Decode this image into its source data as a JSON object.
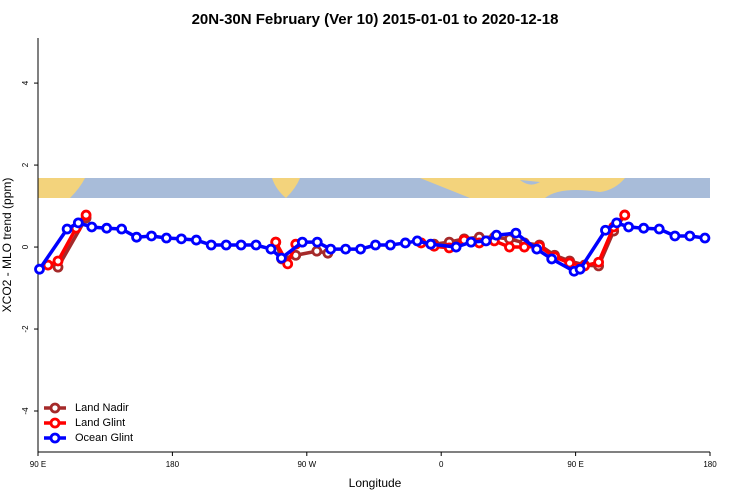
{
  "chart_data": {
    "type": "line",
    "title": "20N-30N February (Ver 10)   2015-01-01 to 2020-12-18",
    "x_label": "Longitude",
    "y_label": "XCO2 - MLO trend (ppm)",
    "xlim": [
      90,
      540
    ],
    "xticks": [
      {
        "value": 90,
        "label": "90 E"
      },
      180,
      {
        "value": 270,
        "label": "90 W"
      },
      {
        "value": 360,
        "label": "0"
      },
      {
        "value": 450,
        "label": "90 E"
      },
      {
        "value": 540,
        "label": "180"
      }
    ],
    "ylim": [
      -5,
      5.1
    ],
    "yticks": [
      -4,
      -2,
      0,
      2,
      4
    ],
    "legend": "bottom-left",
    "series": [
      {
        "name": "Land Nadir",
        "color": "#a52a2a",
        "x": [
          103.4,
          122.2,
          180,
          249.2,
          253.2,
          262.6,
          276.7,
          284.1,
          320,
          355.3,
          365.4,
          375.4,
          385.5,
          395.6,
          405.7,
          415.7,
          425.8,
          435.9,
          446,
          456,
          465.4,
          475.5,
          482.9
        ],
        "values": [
          -0.49,
          0.71,
          null,
          0.12,
          -0.29,
          -0.2,
          -0.1,
          -0.15,
          null,
          0.07,
          0.12,
          0.2,
          0.24,
          0.24,
          0.2,
          0.1,
          0.05,
          -0.2,
          -0.34,
          -0.44,
          -0.46,
          0.39,
          0.78
        ]
      },
      {
        "name": "Land Glint",
        "color": "#ff0000",
        "x": [
          96.7,
          103.4,
          115.5,
          122.2,
          180,
          249.2,
          257.2,
          262.6,
          300,
          346.6,
          355.3,
          365.4,
          375.4,
          385.5,
          395.6,
          405.7,
          415.7,
          425.8,
          435.9,
          446,
          456,
          465.4,
          475.5,
          482.9
        ],
        "values": [
          -0.44,
          -0.34,
          0.46,
          0.78,
          null,
          0.12,
          -0.41,
          0.07,
          null,
          0.1,
          0.02,
          -0.02,
          0.17,
          0.1,
          0.15,
          0,
          0,
          0.02,
          -0.24,
          -0.39,
          -0.46,
          -0.37,
          0.49,
          0.78
        ]
      },
      {
        "name": "Ocean Glint",
        "color": "#0000ff",
        "x": [
          91,
          109.5,
          117,
          126,
          136,
          146,
          156,
          166,
          176,
          186,
          196,
          206,
          216,
          226,
          236,
          246,
          253,
          267,
          277,
          286,
          296,
          306,
          316,
          326,
          336,
          344,
          353,
          370,
          380,
          390,
          397,
          410,
          424,
          434,
          449,
          453,
          470,
          477.5,
          485.5,
          495.6,
          506,
          516.5,
          526.5,
          536.6
        ],
        "values": [
          -0.54,
          0.44,
          0.59,
          0.49,
          0.46,
          0.44,
          0.24,
          0.27,
          0.22,
          0.2,
          0.17,
          0.05,
          0.05,
          0.05,
          0.05,
          -0.05,
          -0.27,
          0.12,
          0.12,
          -0.05,
          -0.05,
          -0.05,
          0.05,
          0.05,
          0.1,
          0.15,
          0.07,
          0,
          0.12,
          0.15,
          0.29,
          0.34,
          -0.05,
          -0.29,
          -0.59,
          -0.54,
          0.41,
          0.59,
          0.49,
          0.46,
          0.44,
          0.27,
          0.27,
          0.22
        ]
      }
    ]
  }
}
